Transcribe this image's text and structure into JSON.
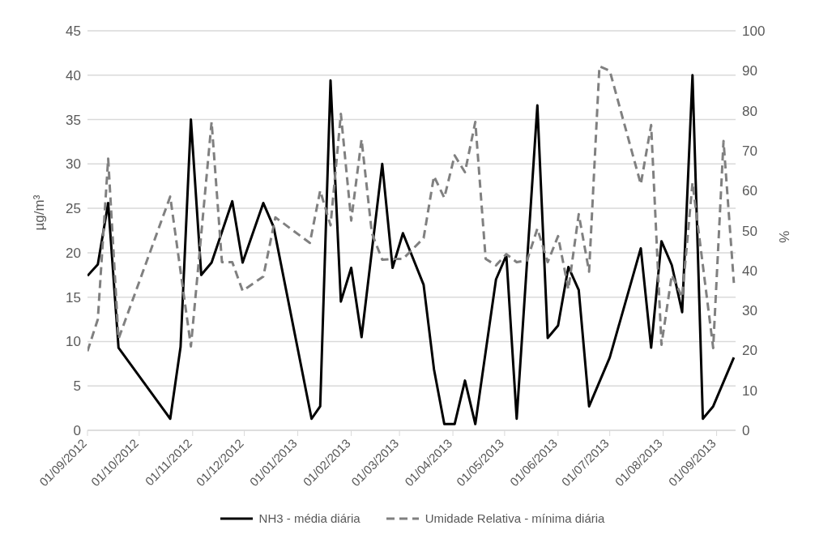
{
  "chart_data": {
    "type": "line",
    "ylabel": "µg/m³",
    "y2label": "%",
    "xlim": [
      "2012-09-01",
      "2013-09-12"
    ],
    "xticks": [
      {
        "value": "2012-09-01",
        "label": "01/09/2012"
      },
      {
        "value": "2012-10-01",
        "label": "01/10/2012"
      },
      {
        "value": "2012-11-01",
        "label": "01/11/2012"
      },
      {
        "value": "2012-12-01",
        "label": "01/12/2012"
      },
      {
        "value": "2013-01-01",
        "label": "01/01/2013"
      },
      {
        "value": "2013-02-01",
        "label": "01/02/2013"
      },
      {
        "value": "2013-03-01",
        "label": "01/03/2013"
      },
      {
        "value": "2013-04-01",
        "label": "01/04/2013"
      },
      {
        "value": "2013-05-01",
        "label": "01/05/2013"
      },
      {
        "value": "2013-06-01",
        "label": "01/06/2013"
      },
      {
        "value": "2013-07-01",
        "label": "01/07/2013"
      },
      {
        "value": "2013-08-01",
        "label": "01/08/2013"
      },
      {
        "value": "2013-09-01",
        "label": "01/09/2013"
      }
    ],
    "ylim": [
      0,
      45
    ],
    "yticks": [
      0,
      5,
      10,
      15,
      20,
      25,
      30,
      35,
      40,
      45
    ],
    "y2lim": [
      0,
      100
    ],
    "y2ticks": [
      0,
      10,
      20,
      30,
      40,
      50,
      60,
      70,
      80,
      90,
      100
    ],
    "grid": "y",
    "legend": "bottom",
    "series": [
      {
        "name": "NH3 - média diária",
        "color": "#000000",
        "line_style": "solid",
        "x": [
          "2012-09-01",
          "2012-09-07",
          "2012-09-13",
          "2012-09-19",
          "2012-10-19",
          "2012-10-25",
          "2012-10-31",
          "2012-11-06",
          "2012-11-12",
          "2012-11-24",
          "2012-11-30",
          "2012-12-12",
          "2012-12-18",
          "2013-01-09",
          "2013-01-14",
          "2013-01-20",
          "2013-01-26",
          "2013-02-01",
          "2013-02-07",
          "2013-02-19",
          "2013-02-25",
          "2013-03-03",
          "2013-03-15",
          "2013-03-21",
          "2013-03-27",
          "2013-04-02",
          "2013-04-08",
          "2013-04-14",
          "2013-04-26",
          "2013-05-02",
          "2013-05-08",
          "2013-05-20",
          "2013-05-26",
          "2013-06-01",
          "2013-06-07",
          "2013-06-13",
          "2013-06-19",
          "2013-07-01",
          "2013-07-19",
          "2013-07-25",
          "2013-07-31",
          "2013-08-06",
          "2013-08-12",
          "2013-08-18",
          "2013-08-24",
          "2013-08-30",
          "2013-09-11"
        ],
        "values": [
          17.4,
          18.7,
          25.6,
          9.3,
          1.3,
          9.4,
          35.0,
          17.5,
          18.9,
          25.8,
          18.9,
          25.6,
          22.9,
          1.3,
          2.7,
          39.4,
          14.5,
          18.3,
          10.5,
          30.0,
          18.3,
          22.2,
          16.4,
          6.9,
          0.7,
          0.7,
          5.6,
          0.7,
          17.0,
          19.7,
          1.3,
          36.6,
          10.4,
          11.8,
          18.4,
          15.8,
          2.7,
          8.2,
          20.5,
          9.3,
          21.3,
          18.6,
          13.3,
          40.0,
          1.3,
          2.7,
          8.2
        ]
      },
      {
        "name": "Umidade Relativa - mínima diária",
        "color": "#808080",
        "line_style": "dashed",
        "axis": "y2",
        "x": [
          "2012-09-01",
          "2012-09-07",
          "2012-09-13",
          "2012-09-19",
          "2012-10-19",
          "2012-10-31",
          "2012-11-12",
          "2012-11-18",
          "2012-11-24",
          "2012-11-30",
          "2012-12-12",
          "2012-12-19",
          "2013-01-08",
          "2013-01-14",
          "2013-01-20",
          "2013-01-26",
          "2013-02-01",
          "2013-02-07",
          "2013-02-13",
          "2013-02-19",
          "2013-02-25",
          "2013-03-03",
          "2013-03-15",
          "2013-03-21",
          "2013-03-27",
          "2013-04-02",
          "2013-04-08",
          "2013-04-14",
          "2013-04-20",
          "2013-04-26",
          "2013-05-02",
          "2013-05-08",
          "2013-05-14",
          "2013-05-20",
          "2013-05-26",
          "2013-06-01",
          "2013-06-07",
          "2013-06-13",
          "2013-06-19",
          "2013-06-25",
          "2013-07-01",
          "2013-07-19",
          "2013-07-25",
          "2013-07-31",
          "2013-08-06",
          "2013-08-12",
          "2013-08-18",
          "2013-08-30",
          "2013-09-05",
          "2013-09-11"
        ],
        "values": [
          19.8,
          27.8,
          68.0,
          22.9,
          58.5,
          21.0,
          77.2,
          42.1,
          42.1,
          34.9,
          38.5,
          53.3,
          46.9,
          60.0,
          51.3,
          79.2,
          52.5,
          72.8,
          49.3,
          42.7,
          42.9,
          42.9,
          48.1,
          63.6,
          58.2,
          68.8,
          64.6,
          77.2,
          42.9,
          41.3,
          44.1,
          42.1,
          42.5,
          50.5,
          42.1,
          48.6,
          35.3,
          54.1,
          39.7,
          91.1,
          90.0,
          61.6,
          76.4,
          21.4,
          38.9,
          33.3,
          62.0,
          20.6,
          72.4,
          36.9
        ]
      }
    ]
  }
}
